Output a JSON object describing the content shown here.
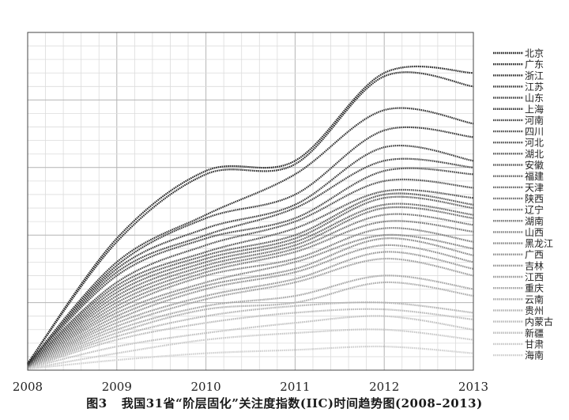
{
  "caption": {
    "figure_label": "图3",
    "text": "我国31省“阶层固化”关注度指数(IIC)时间趋势图(2008–2013)"
  },
  "chart_data": {
    "type": "line",
    "title": "",
    "xlabel": "",
    "ylabel": "",
    "x": [
      2008,
      2009,
      2010,
      2011,
      2012,
      2013
    ],
    "xlim": [
      2008,
      2013
    ],
    "ylim": [
      0,
      5
    ],
    "grid": true,
    "legend_position": "right",
    "y_units": "grid units (no y tick labels shown)",
    "series": [
      {
        "name": "北京",
        "color": "#2b2b2b",
        "values": [
          0.1,
          1.95,
          2.95,
          3.1,
          4.4,
          4.4
        ]
      },
      {
        "name": "广东",
        "color": "#303030",
        "values": [
          0.1,
          1.9,
          2.9,
          3.05,
          4.35,
          4.2
        ]
      },
      {
        "name": "浙江",
        "color": "#353535",
        "values": [
          0.09,
          1.6,
          2.3,
          2.9,
          3.85,
          3.65
        ]
      },
      {
        "name": "江苏",
        "color": "#3a3a3a",
        "values": [
          0.09,
          1.55,
          2.25,
          2.6,
          3.55,
          3.45
        ]
      },
      {
        "name": "山东",
        "color": "#404040",
        "values": [
          0.09,
          1.5,
          2.1,
          2.45,
          3.3,
          3.1
        ]
      },
      {
        "name": "上海",
        "color": "#454545",
        "values": [
          0.08,
          1.45,
          2.0,
          2.4,
          3.1,
          3.0
        ]
      },
      {
        "name": "河南",
        "color": "#4a4a4a",
        "values": [
          0.08,
          1.4,
          1.95,
          2.25,
          2.95,
          2.9
        ]
      },
      {
        "name": "四川",
        "color": "#505050",
        "values": [
          0.08,
          1.3,
          1.85,
          2.2,
          2.8,
          2.7
        ]
      },
      {
        "name": "河北",
        "color": "#555555",
        "values": [
          0.08,
          1.25,
          1.75,
          2.1,
          2.65,
          2.55
        ]
      },
      {
        "name": "湖北",
        "color": "#5a5a5a",
        "values": [
          0.07,
          1.2,
          1.7,
          2.0,
          2.6,
          2.45
        ]
      },
      {
        "name": "安徽",
        "color": "#606060",
        "values": [
          0.07,
          1.15,
          1.65,
          1.95,
          2.55,
          2.4
        ]
      },
      {
        "name": "福建",
        "color": "#666666",
        "values": [
          0.07,
          1.1,
          1.6,
          1.9,
          2.45,
          2.3
        ]
      },
      {
        "name": "天津",
        "color": "#6c6c6c",
        "values": [
          0.07,
          1.05,
          1.55,
          1.85,
          2.4,
          2.25
        ]
      },
      {
        "name": "陕西",
        "color": "#727272",
        "values": [
          0.06,
          1.0,
          1.5,
          1.8,
          2.3,
          2.15
        ]
      },
      {
        "name": "辽宁",
        "color": "#787878",
        "values": [
          0.06,
          0.95,
          1.45,
          1.75,
          2.2,
          2.05
        ]
      },
      {
        "name": "湖南",
        "color": "#7e7e7e",
        "values": [
          0.06,
          0.9,
          1.4,
          1.65,
          2.1,
          1.9
        ]
      },
      {
        "name": "山西",
        "color": "#848484",
        "values": [
          0.06,
          0.85,
          1.3,
          1.6,
          2.0,
          1.8
        ]
      },
      {
        "name": "黑龙江",
        "color": "#8a8a8a",
        "values": [
          0.05,
          0.8,
          1.25,
          1.5,
          1.95,
          1.7
        ]
      },
      {
        "name": "广西",
        "color": "#909090",
        "values": [
          0.05,
          0.75,
          1.2,
          1.45,
          1.85,
          1.6
        ]
      },
      {
        "name": "吉林",
        "color": "#979797",
        "values": [
          0.05,
          0.7,
          1.1,
          1.35,
          1.75,
          1.5
        ]
      },
      {
        "name": "江西",
        "color": "#9e9e9e",
        "values": [
          0.05,
          0.65,
          1.05,
          1.3,
          1.65,
          1.4
        ]
      },
      {
        "name": "重庆",
        "color": "#a5a5a5",
        "values": [
          0.04,
          0.6,
          0.95,
          1.1,
          1.4,
          1.2
        ]
      },
      {
        "name": "云南",
        "color": "#acacac",
        "values": [
          0.04,
          0.55,
          0.9,
          1.0,
          1.3,
          1.1
        ]
      },
      {
        "name": "贵州",
        "color": "#b3b3b3",
        "values": [
          0.04,
          0.5,
          0.8,
          0.95,
          1.0,
          0.85
        ]
      },
      {
        "name": "内蒙古",
        "color": "#bababa",
        "values": [
          0.03,
          0.45,
          0.7,
          0.85,
          0.9,
          0.75
        ]
      },
      {
        "name": "新疆",
        "color": "#c1c1c1",
        "values": [
          0.03,
          0.35,
          0.55,
          0.7,
          0.8,
          0.6
        ]
      },
      {
        "name": "甘肃",
        "color": "#c8c8c8",
        "values": [
          0.02,
          0.25,
          0.45,
          0.55,
          0.6,
          0.45
        ]
      },
      {
        "name": "海南",
        "color": "#cfcfcf",
        "values": [
          0.02,
          0.15,
          0.25,
          0.3,
          0.35,
          0.25
        ]
      }
    ]
  }
}
